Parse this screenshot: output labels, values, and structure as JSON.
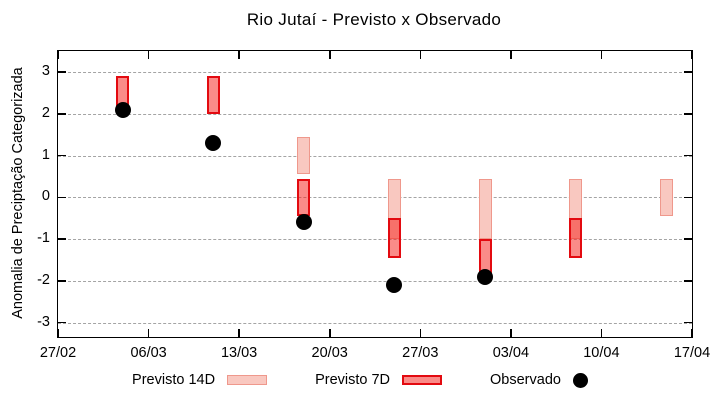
{
  "title": "Rio Jutaí - Previsto x Observado",
  "y_axis_label": "Anomalia de Preciptação Categorizada",
  "legend": {
    "forecast14_label": "Previsto 14D",
    "forecast7_label": "Previsto 7D",
    "observed_label": "Observado"
  },
  "colors": {
    "forecast14_fill": "#f9c8c0",
    "forecast14_border": "#ef988c",
    "forecast7_fill": "rgba(246,32,26,0.52)",
    "forecast7_border": "#e30a10",
    "observed": "#000000",
    "grid": "#a4a4a4"
  },
  "chart_data": {
    "type": "bar",
    "subtype": "forecast-range-bars-with-observed-points",
    "title": "Rio Jutaí - Previsto x Observado",
    "xlabel": "",
    "ylabel": "Anomalia de Preciptação Categorizada",
    "ylim": [
      -3.4,
      3.5
    ],
    "yticks": [
      3,
      2,
      1,
      0,
      -1,
      -2,
      -3
    ],
    "xtick_labels": [
      "27/02",
      "06/03",
      "13/03",
      "20/03",
      "27/03",
      "03/04",
      "10/04",
      "17/04"
    ],
    "x_range_days": 49,
    "xtick_interval_days": 7,
    "grid": "horizontal dashed",
    "legend_position": "below plot",
    "series": [
      {
        "name": "Previsto 14D",
        "type": "range-bar",
        "points": [
          {
            "date": "18/03",
            "day": 19,
            "low": 0.55,
            "high": 1.45
          },
          {
            "date": "25/03",
            "day": 26,
            "low": -1.0,
            "high": 0.45
          },
          {
            "date": "01/04",
            "day": 33,
            "low": -1.0,
            "high": 0.45
          },
          {
            "date": "08/04",
            "day": 40,
            "low": -1.0,
            "high": 0.45
          },
          {
            "date": "15/04",
            "day": 47,
            "low": -0.45,
            "high": 0.45
          }
        ]
      },
      {
        "name": "Previsto 7D",
        "type": "range-bar",
        "points": [
          {
            "date": "04/03",
            "day": 5,
            "low": 2.1,
            "high": 2.9
          },
          {
            "date": "11/03",
            "day": 12,
            "low": 2.0,
            "high": 2.9
          },
          {
            "date": "18/03",
            "day": 19,
            "low": -0.45,
            "high": 0.45
          },
          {
            "date": "25/03",
            "day": 26,
            "low": -1.45,
            "high": -0.5
          },
          {
            "date": "01/04",
            "day": 33,
            "low": -1.9,
            "high": -1.0
          },
          {
            "date": "08/04",
            "day": 40,
            "low": -1.45,
            "high": -0.5
          }
        ]
      },
      {
        "name": "Observado",
        "type": "scatter",
        "points": [
          {
            "date": "04/03",
            "day": 5,
            "value": 2.1
          },
          {
            "date": "11/03",
            "day": 12,
            "value": 1.3
          },
          {
            "date": "18/03",
            "day": 19,
            "value": -0.6
          },
          {
            "date": "25/03",
            "day": 26,
            "value": -2.1
          },
          {
            "date": "01/04",
            "day": 33,
            "value": -1.9
          }
        ]
      }
    ]
  }
}
